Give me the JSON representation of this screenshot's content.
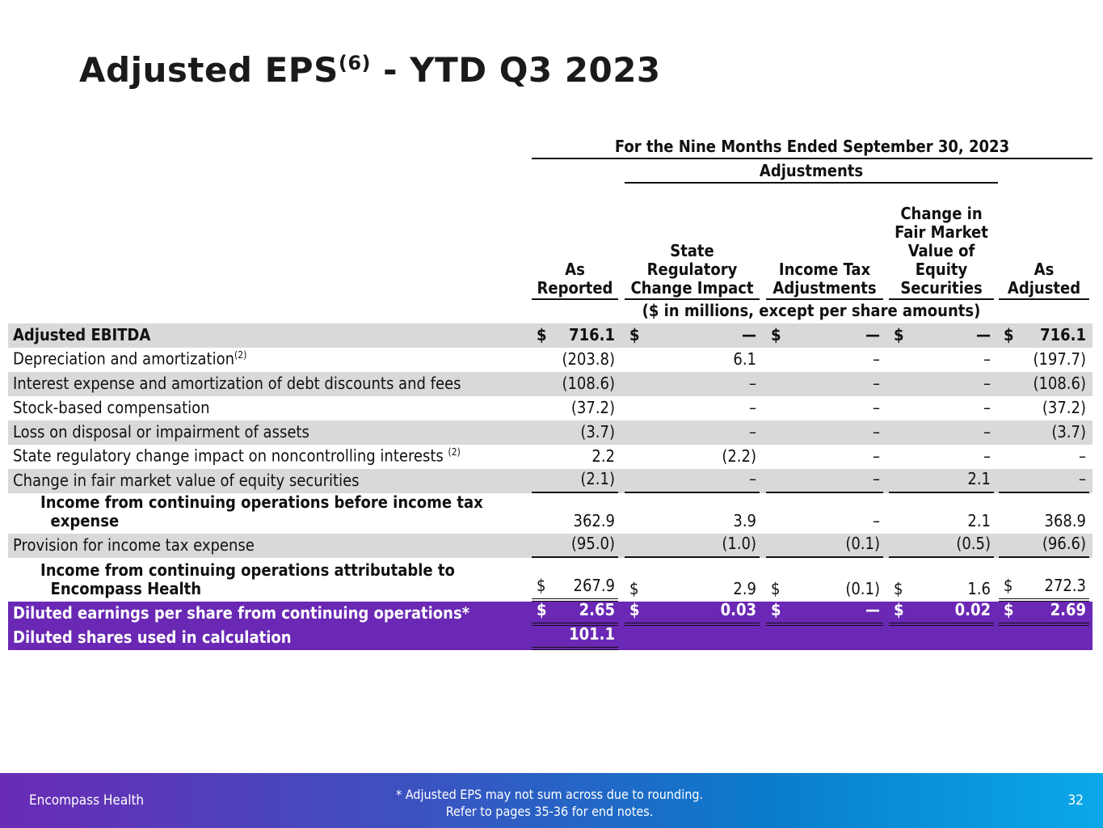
{
  "title": {
    "main": "Adjusted EPS",
    "sup": "(6)",
    "rest": " - YTD Q3 2023"
  },
  "period_header": "For the Nine Months Ended September 30, 2023",
  "adjustments_header": "Adjustments",
  "columns": [
    "As Reported",
    "State Regulatory Change Impact",
    "Income Tax Adjustments",
    "Change in Fair Market Value of Equity Securities",
    "As Adjusted"
  ],
  "units_note": "($ in millions, except per share amounts)",
  "rows": [
    {
      "label": "Adjusted EBITDA",
      "style": "gray-bold",
      "cells": [
        [
          "$",
          "716.1"
        ],
        [
          "$",
          "—"
        ],
        [
          "$",
          "—"
        ],
        [
          "$",
          "—"
        ],
        [
          "$",
          "716.1"
        ]
      ]
    },
    {
      "label": "Depreciation and amortization",
      "sup": "(2)",
      "style": "plain",
      "cells": [
        [
          "",
          "(203.8)"
        ],
        [
          "",
          "6.1"
        ],
        [
          "",
          "–"
        ],
        [
          "",
          "–"
        ],
        [
          "",
          "(197.7)"
        ]
      ]
    },
    {
      "label": "Interest expense and amortization of debt discounts and fees",
      "style": "gray",
      "cells": [
        [
          "",
          "(108.6)"
        ],
        [
          "",
          "–"
        ],
        [
          "",
          "–"
        ],
        [
          "",
          "–"
        ],
        [
          "",
          "(108.6)"
        ]
      ]
    },
    {
      "label": "Stock-based compensation",
      "style": "plain",
      "cells": [
        [
          "",
          "(37.2)"
        ],
        [
          "",
          "–"
        ],
        [
          "",
          "–"
        ],
        [
          "",
          "–"
        ],
        [
          "",
          "(37.2)"
        ]
      ]
    },
    {
      "label": "Loss on disposal or impairment of assets",
      "style": "gray",
      "cells": [
        [
          "",
          "(3.7)"
        ],
        [
          "",
          "–"
        ],
        [
          "",
          "–"
        ],
        [
          "",
          "–"
        ],
        [
          "",
          "(3.7)"
        ]
      ]
    },
    {
      "label": "State regulatory change impact on noncontrolling interests ",
      "sup": "(2)",
      "style": "plain",
      "cells": [
        [
          "",
          "2.2"
        ],
        [
          "",
          "(2.2)"
        ],
        [
          "",
          "–"
        ],
        [
          "",
          "–"
        ],
        [
          "",
          "–"
        ]
      ]
    },
    {
      "label": "Change in fair market value of equity securities",
      "style": "gray",
      "cells": [
        [
          "",
          "(2.1)"
        ],
        [
          "",
          "–"
        ],
        [
          "",
          "–"
        ],
        [
          "",
          "2.1"
        ],
        [
          "",
          "–"
        ]
      ]
    },
    {
      "label": "Income from continuing operations before income tax\n  expense",
      "style": "indent",
      "cells": [
        [
          "",
          "362.9"
        ],
        [
          "",
          "3.9"
        ],
        [
          "",
          "–"
        ],
        [
          "",
          "2.1"
        ],
        [
          "",
          "368.9"
        ]
      ]
    },
    {
      "label": "Provision for income tax expense",
      "style": "gray",
      "cells": [
        [
          "",
          "(95.0)"
        ],
        [
          "",
          "(1.0)"
        ],
        [
          "",
          "(0.1)"
        ],
        [
          "",
          "(0.5)"
        ],
        [
          "",
          "(96.6)"
        ]
      ]
    },
    {
      "label": "Income from continuing operations attributable to\n  Encompass Health",
      "style": "indent",
      "cells": [
        [
          "$",
          "267.9"
        ],
        [
          "$",
          "2.9"
        ],
        [
          "$",
          "(0.1)"
        ],
        [
          "$",
          "1.6"
        ],
        [
          "$",
          "272.3"
        ]
      ]
    },
    {
      "label": "Diluted earnings per share from continuing operations*",
      "style": "purple",
      "cells": [
        [
          "$",
          "2.65"
        ],
        [
          "$",
          "0.03"
        ],
        [
          "$",
          "—"
        ],
        [
          "$",
          "0.02"
        ],
        [
          "$",
          "2.69"
        ]
      ]
    },
    {
      "label": "Diluted shares used in calculation",
      "style": "purple",
      "cells": [
        [
          "",
          "101.1"
        ],
        null,
        null,
        null,
        null
      ]
    }
  ],
  "footer": {
    "company": "Encompass Health",
    "note_line1": "*  Adjusted EPS may not sum across due to rounding.",
    "note_line2": "Refer to pages 35-36 for end notes.",
    "page": "32"
  },
  "colors": {
    "purple": "#6a28b4",
    "gray_row": "#d9d9d9"
  }
}
